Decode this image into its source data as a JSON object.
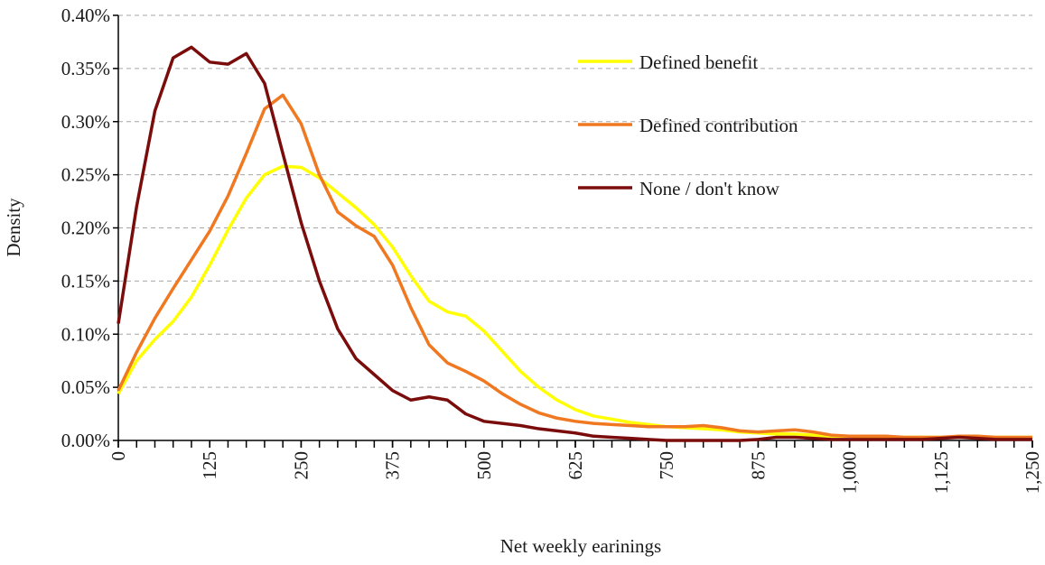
{
  "chart_data": {
    "type": "line",
    "xlabel": "Net weekly earinings",
    "ylabel": "Density",
    "x": [
      0,
      25,
      50,
      75,
      100,
      125,
      150,
      175,
      200,
      225,
      250,
      275,
      300,
      325,
      350,
      375,
      400,
      425,
      450,
      475,
      500,
      525,
      550,
      575,
      600,
      625,
      650,
      675,
      700,
      725,
      750,
      775,
      800,
      825,
      850,
      875,
      900,
      925,
      950,
      975,
      1000,
      1025,
      1050,
      1075,
      1100,
      1125,
      1150,
      1175,
      1200,
      1225,
      1250
    ],
    "series": [
      {
        "name": "Defined benefit",
        "color": "#ffff00",
        "values": [
          0.044,
          0.075,
          0.095,
          0.112,
          0.135,
          0.165,
          0.198,
          0.228,
          0.25,
          0.258,
          0.257,
          0.247,
          0.233,
          0.219,
          0.203,
          0.182,
          0.155,
          0.131,
          0.121,
          0.117,
          0.103,
          0.084,
          0.065,
          0.05,
          0.038,
          0.029,
          0.023,
          0.02,
          0.017,
          0.015,
          0.013,
          0.012,
          0.011,
          0.01,
          0.008,
          0.007,
          0.006,
          0.006,
          0.005,
          0.004,
          0.004,
          0.003,
          0.003,
          0.003,
          0.003,
          0.003,
          0.003,
          0.003,
          0.003,
          0.003,
          0.003
        ]
      },
      {
        "name": "Defined contribution",
        "color": "#f07820",
        "values": [
          0.047,
          0.083,
          0.115,
          0.143,
          0.17,
          0.197,
          0.23,
          0.27,
          0.312,
          0.325,
          0.298,
          0.25,
          0.215,
          0.202,
          0.192,
          0.165,
          0.125,
          0.09,
          0.073,
          0.065,
          0.056,
          0.044,
          0.034,
          0.026,
          0.021,
          0.018,
          0.016,
          0.015,
          0.014,
          0.013,
          0.013,
          0.013,
          0.014,
          0.012,
          0.009,
          0.008,
          0.009,
          0.01,
          0.008,
          0.005,
          0.004,
          0.004,
          0.004,
          0.003,
          0.003,
          0.003,
          0.004,
          0.004,
          0.003,
          0.003,
          0.003
        ]
      },
      {
        "name": "None / don't know",
        "color": "#7b0c0c",
        "values": [
          0.11,
          0.22,
          0.31,
          0.36,
          0.37,
          0.356,
          0.354,
          0.364,
          0.336,
          0.27,
          0.205,
          0.15,
          0.105,
          0.077,
          0.062,
          0.047,
          0.038,
          0.041,
          0.038,
          0.025,
          0.018,
          0.016,
          0.014,
          0.011,
          0.009,
          0.007,
          0.004,
          0.003,
          0.002,
          0.001,
          0,
          0,
          0,
          0,
          0,
          0.001,
          0.003,
          0.003,
          0.002,
          0.001,
          0.001,
          0.001,
          0.001,
          0.001,
          0.001,
          0.002,
          0.003,
          0.002,
          0.001,
          0.001,
          0.001
        ]
      }
    ],
    "xlim": [
      0,
      1250
    ],
    "xticks": [
      0,
      125,
      250,
      375,
      500,
      625,
      750,
      875,
      {
        "value": 1000,
        "label": "1,000"
      },
      {
        "value": 1125,
        "label": "1,125"
      },
      {
        "value": 1250,
        "label": "1,250"
      }
    ],
    "ylim": [
      0,
      0.4
    ],
    "yticks": [
      {
        "value": 0,
        "label": "0.00%"
      },
      {
        "value": 0.05,
        "label": "0.05%"
      },
      {
        "value": 0.1,
        "label": "0.10%"
      },
      {
        "value": 0.15,
        "label": "0.15%"
      },
      {
        "value": 0.2,
        "label": "0.20%"
      },
      {
        "value": 0.25,
        "label": "0.25%"
      },
      {
        "value": 0.3,
        "label": "0.30%"
      },
      {
        "value": 0.35,
        "label": "0.35%"
      },
      {
        "value": 0.4,
        "label": "0.40%"
      }
    ],
    "grid": true,
    "legend": "upper right"
  }
}
